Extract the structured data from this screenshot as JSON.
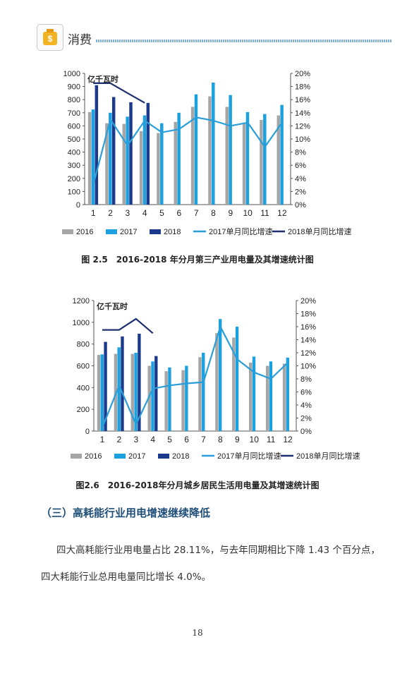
{
  "header": {
    "title": "消费",
    "icon": "money-bag-icon"
  },
  "captions": {
    "c1": "图 2.5　2016-2018 年分月第三产业用电量及其增速统计图",
    "c2": "图2.6　2016-2018年分月城乡居民生活用电量及其增速统计图"
  },
  "section": {
    "title": "（三）高耗能行业用电增速继续降低"
  },
  "paragraphs": {
    "p1": "四大高耗能行业用电量占比 28.11%，与去年同期相比下降 1.43 个百分点，",
    "p2": "四大耗能行业总用电量同比增长 4.0%。"
  },
  "page_number": "18",
  "colors": {
    "s2016": "#a6a6a6",
    "s2017": "#1ca0de",
    "s2018": "#1c3a8c",
    "l2017": "#2a9ed8",
    "l2018": "#1c2f6e"
  },
  "chart_data": [
    {
      "type": "bar",
      "unit": "亿千瓦时",
      "categories": [
        "1",
        "2",
        "3",
        "4",
        "5",
        "6",
        "7",
        "8",
        "9",
        "10",
        "11",
        "12"
      ],
      "ylim": [
        0,
        1000
      ],
      "yticks": [
        "0",
        "100",
        "200",
        "300",
        "400",
        "500",
        "600",
        "700",
        "800",
        "900",
        "1000"
      ],
      "y2lim": [
        0,
        20
      ],
      "y2ticks": [
        "0%",
        "2%",
        "4%",
        "6%",
        "8%",
        "10%",
        "12%",
        "14%",
        "16%",
        "18%",
        "20%"
      ],
      "series": [
        {
          "name": "2016",
          "kind": "bar",
          "values": [
            705,
            620,
            615,
            560,
            545,
            630,
            745,
            825,
            745,
            625,
            645,
            680
          ]
        },
        {
          "name": "2017",
          "kind": "bar",
          "values": [
            725,
            700,
            670,
            680,
            620,
            700,
            840,
            930,
            835,
            705,
            690,
            760
          ]
        },
        {
          "name": "2018",
          "kind": "bar",
          "values": [
            910,
            820,
            780,
            775,
            null,
            null,
            null,
            null,
            null,
            null,
            null,
            null
          ]
        },
        {
          "name": "2017单月同比增速",
          "kind": "line",
          "axis": "right",
          "values": [
            3.0,
            13.0,
            9.0,
            12.8,
            11.0,
            11.5,
            13.3,
            12.8,
            12.0,
            12.5,
            8.8,
            12.5
          ]
        },
        {
          "name": "2018单月同比增速",
          "kind": "line",
          "axis": "right",
          "values": [
            18.5,
            18.5,
            17.0,
            15.5,
            null,
            null,
            null,
            null,
            null,
            null,
            null,
            null
          ]
        }
      ],
      "legend": "bottom"
    },
    {
      "type": "bar",
      "unit": "亿千瓦时",
      "categories": [
        "1",
        "2",
        "3",
        "4",
        "5",
        "6",
        "7",
        "8",
        "9",
        "10",
        "11",
        "12"
      ],
      "ylim": [
        0,
        1200
      ],
      "yticks": [
        "0",
        "200",
        "400",
        "600",
        "800",
        "1000",
        "1200"
      ],
      "y2lim": [
        0,
        20
      ],
      "y2ticks": [
        "0%",
        "2%",
        "4%",
        "6%",
        "8%",
        "10%",
        "12%",
        "14%",
        "16%",
        "18%",
        "20%"
      ],
      "series": [
        {
          "name": "2016",
          "kind": "bar",
          "values": [
            700,
            710,
            710,
            600,
            550,
            560,
            680,
            900,
            860,
            630,
            600,
            620
          ]
        },
        {
          "name": "2017",
          "kind": "bar",
          "values": [
            705,
            770,
            720,
            640,
            585,
            600,
            720,
            1030,
            960,
            685,
            640,
            675
          ]
        },
        {
          "name": "2018",
          "kind": "bar",
          "values": [
            820,
            870,
            895,
            690,
            null,
            null,
            null,
            null,
            null,
            null,
            null,
            null
          ]
        },
        {
          "name": "2017单月同比增速",
          "kind": "line",
          "axis": "right",
          "values": [
            0.5,
            7.0,
            1.0,
            6.5,
            7.0,
            7.3,
            7.5,
            16.0,
            11.0,
            9.0,
            8.0,
            10.5
          ]
        },
        {
          "name": "2018单月同比增速",
          "kind": "line",
          "axis": "right",
          "values": [
            15.5,
            15.5,
            17.2,
            15.0,
            null,
            null,
            null,
            null,
            null,
            null,
            null,
            null
          ]
        }
      ],
      "legend": "bottom"
    }
  ]
}
